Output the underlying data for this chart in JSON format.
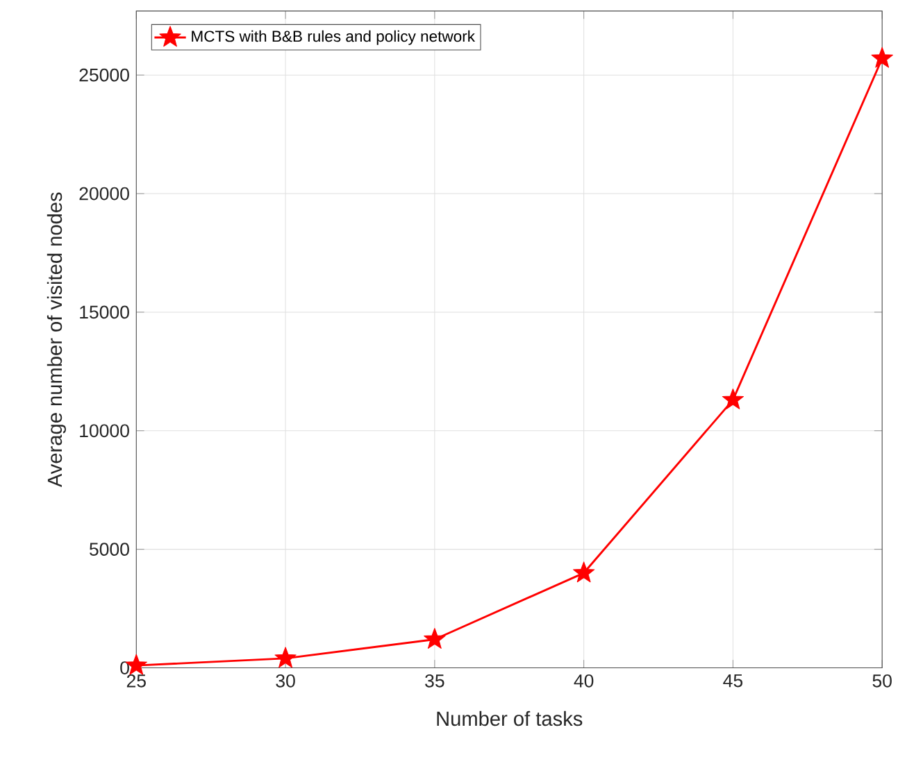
{
  "chart_data": {
    "type": "line",
    "xlabel": "Number of tasks",
    "ylabel": "Average number of visited nodes",
    "x": [
      25,
      30,
      35,
      40,
      45,
      50
    ],
    "series": [
      {
        "name": "MCTS with B&B rules and policy network",
        "color": "#ff0000",
        "values": [
          100,
          400,
          1200,
          4000,
          11300,
          25700
        ]
      }
    ],
    "xlim": [
      25,
      50
    ],
    "xticks": [
      25,
      30,
      35,
      40,
      45,
      50
    ],
    "ylim": [
      0,
      27700
    ],
    "yticks": [
      0,
      5000,
      10000,
      15000,
      20000,
      25000
    ],
    "grid": true,
    "legend": "top left",
    "marker": "star",
    "line_style": "solid"
  }
}
